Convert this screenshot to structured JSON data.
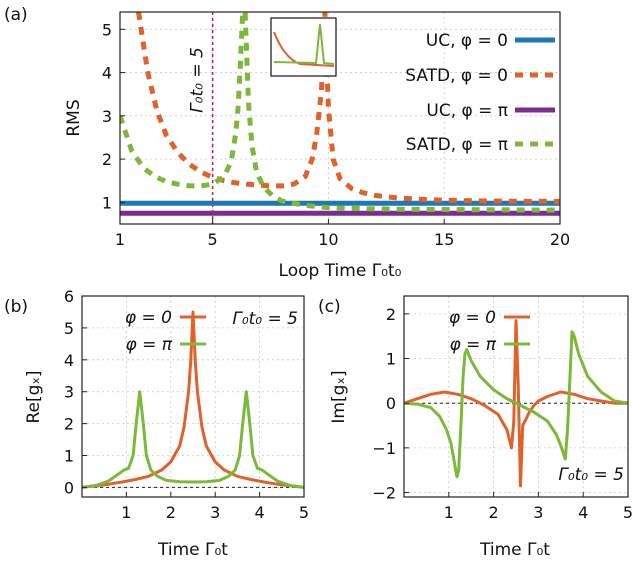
{
  "chart_data": [
    {
      "id": "a",
      "type": "line",
      "panel_label": "(a)",
      "xlabel": "Loop Time Γ₀t₀",
      "ylabel": "RMS",
      "xlim": [
        1,
        20
      ],
      "ylim": [
        0.5,
        5.4
      ],
      "xticks": [
        1,
        5,
        10,
        15,
        20
      ],
      "yticks": [
        1,
        2,
        3,
        4,
        5
      ],
      "grid": true,
      "legend_position": "right",
      "marker_line": {
        "x": 5,
        "label": "Γ₀t₀ = 5",
        "color": "#b5224a"
      },
      "series": [
        {
          "name": "UC, φ = 0",
          "style": "solid",
          "color": "#1f77b4",
          "x": [
            1,
            20
          ],
          "y": [
            0.98,
            0.98
          ]
        },
        {
          "name": "SATD, φ = 0",
          "style": "dashed",
          "color": "#e0622a",
          "x": [
            1.8,
            2.2,
            2.6,
            3.0,
            3.5,
            4.0,
            4.5,
            5.0,
            5.5,
            6.0,
            6.5,
            7.0,
            7.5,
            8.0,
            8.5,
            9.0,
            9.3,
            9.5,
            9.7,
            9.85,
            10.0,
            10.2,
            10.5,
            11.0,
            11.5,
            12.0,
            13.0,
            14.0,
            15.0,
            17.0,
            20.0
          ],
          "y": [
            5.4,
            4.0,
            3.1,
            2.55,
            2.15,
            1.88,
            1.7,
            1.58,
            1.5,
            1.45,
            1.42,
            1.4,
            1.38,
            1.38,
            1.42,
            1.6,
            2.0,
            2.6,
            3.6,
            5.4,
            3.2,
            2.0,
            1.55,
            1.32,
            1.22,
            1.16,
            1.1,
            1.07,
            1.05,
            1.03,
            1.02
          ]
        },
        {
          "name": "UC, φ = π",
          "style": "solid",
          "color": "#7a2d8f",
          "x": [
            1,
            20
          ],
          "y": [
            0.75,
            0.75
          ]
        },
        {
          "name": "SATD, φ = π",
          "style": "dashed",
          "color": "#7cb83a",
          "x": [
            1.0,
            1.5,
            2.0,
            2.5,
            3.0,
            3.5,
            4.0,
            4.5,
            5.0,
            5.5,
            5.8,
            6.0,
            6.1,
            6.2,
            6.3,
            6.4,
            6.55,
            6.7,
            6.9,
            7.2,
            7.6,
            8.0,
            9.0,
            10.0,
            11.0,
            13.0,
            16.0,
            20.0
          ],
          "y": [
            3.0,
            2.2,
            1.8,
            1.6,
            1.48,
            1.42,
            1.38,
            1.38,
            1.42,
            1.6,
            1.95,
            2.6,
            3.2,
            4.2,
            5.4,
            5.4,
            3.3,
            2.3,
            1.7,
            1.35,
            1.15,
            1.03,
            0.93,
            0.88,
            0.86,
            0.84,
            0.83,
            0.82
          ]
        }
      ],
      "inset": {
        "type": "line",
        "series_colors": [
          "#e0622a",
          "#7cb83a"
        ]
      }
    },
    {
      "id": "b",
      "type": "line",
      "panel_label": "(b)",
      "xlabel": "Time Γ₀t",
      "ylabel": "Re[gₓ]",
      "xlim": [
        0,
        5
      ],
      "ylim": [
        -0.3,
        6
      ],
      "xticks": [
        1,
        2,
        3,
        4,
        5
      ],
      "yticks": [
        0,
        1,
        2,
        3,
        4,
        5,
        6
      ],
      "grid": true,
      "legend_position": "top-left",
      "annotation": {
        "text": "Γ₀t₀ = 5",
        "color": "#b5224a"
      },
      "series": [
        {
          "name": "φ = 0",
          "color": "#e0622a",
          "x": [
            0.0,
            0.3,
            0.6,
            0.9,
            1.2,
            1.5,
            1.8,
            2.0,
            2.2,
            2.3,
            2.4,
            2.45,
            2.5,
            2.55,
            2.6,
            2.7,
            2.8,
            3.0,
            3.2,
            3.5,
            3.8,
            4.1,
            4.4,
            4.7,
            5.0
          ],
          "y": [
            0.0,
            0.05,
            0.1,
            0.17,
            0.25,
            0.35,
            0.55,
            0.8,
            1.3,
            1.9,
            3.0,
            4.0,
            5.5,
            4.0,
            3.0,
            1.9,
            1.3,
            0.8,
            0.55,
            0.35,
            0.25,
            0.17,
            0.1,
            0.05,
            0.0
          ]
        },
        {
          "name": "φ = π",
          "color": "#7cb83a",
          "x": [
            0.0,
            0.3,
            0.6,
            0.8,
            0.95,
            1.05,
            1.15,
            1.22,
            1.3,
            1.38,
            1.45,
            1.55,
            1.7,
            1.9,
            2.2,
            2.5,
            2.8,
            3.1,
            3.3,
            3.45,
            3.55,
            3.62,
            3.7,
            3.78,
            3.85,
            3.95,
            4.05,
            4.2,
            4.4,
            4.7,
            5.0
          ],
          "y": [
            0.0,
            0.05,
            0.2,
            0.4,
            0.55,
            0.6,
            1.0,
            2.0,
            3.0,
            2.0,
            1.0,
            0.55,
            0.35,
            0.22,
            0.18,
            0.17,
            0.18,
            0.22,
            0.35,
            0.55,
            1.0,
            2.0,
            3.0,
            2.0,
            1.0,
            0.6,
            0.55,
            0.4,
            0.2,
            0.05,
            0.0
          ]
        }
      ]
    },
    {
      "id": "c",
      "type": "line",
      "panel_label": "(c)",
      "xlabel": "Time Γ₀t",
      "ylabel": "Im[gₓ]",
      "xlim": [
        0,
        5
      ],
      "ylim": [
        -2.1,
        2.4
      ],
      "xticks": [
        1,
        2,
        3,
        4,
        5
      ],
      "yticks": [
        -2,
        -1,
        0,
        1,
        2
      ],
      "grid": true,
      "legend_position": "top-left",
      "annotation": {
        "text": "Γ₀t₀ = 5",
        "color": "#b5224a"
      },
      "series": [
        {
          "name": "φ = 0",
          "color": "#e0622a",
          "x": [
            0.0,
            0.3,
            0.6,
            0.9,
            1.2,
            1.5,
            1.8,
            2.1,
            2.3,
            2.4,
            2.45,
            2.5,
            2.55,
            2.6,
            2.65,
            2.7,
            2.8,
            2.9,
            3.0,
            3.2,
            3.5,
            3.8,
            4.1,
            4.4,
            4.7,
            5.0
          ],
          "y": [
            0.0,
            0.1,
            0.2,
            0.25,
            0.2,
            0.1,
            -0.05,
            -0.25,
            -0.6,
            -1.0,
            -0.4,
            1.85,
            0.4,
            -1.85,
            -0.5,
            -0.4,
            -0.2,
            -0.05,
            0.05,
            0.15,
            0.25,
            0.2,
            0.1,
            0.05,
            0.0,
            0.0
          ]
        },
        {
          "name": "φ = π",
          "color": "#7cb83a",
          "x": [
            0.0,
            0.3,
            0.6,
            0.8,
            0.95,
            1.05,
            1.12,
            1.18,
            1.22,
            1.27,
            1.32,
            1.36,
            1.4,
            1.5,
            1.7,
            2.0,
            2.3,
            2.6,
            2.9,
            3.2,
            3.4,
            3.5,
            3.6,
            3.65,
            3.7,
            3.75,
            3.8,
            3.9,
            4.1,
            4.4,
            4.7,
            5.0
          ],
          "y": [
            0.0,
            -0.02,
            -0.1,
            -0.3,
            -0.6,
            -0.9,
            -1.3,
            -1.65,
            -1.5,
            -0.5,
            0.6,
            1.1,
            1.2,
            0.95,
            0.6,
            0.3,
            0.1,
            -0.05,
            -0.2,
            -0.4,
            -0.7,
            -0.95,
            -1.25,
            -0.6,
            0.5,
            1.6,
            1.5,
            1.1,
            0.6,
            0.25,
            0.05,
            0.0
          ]
        }
      ]
    }
  ]
}
